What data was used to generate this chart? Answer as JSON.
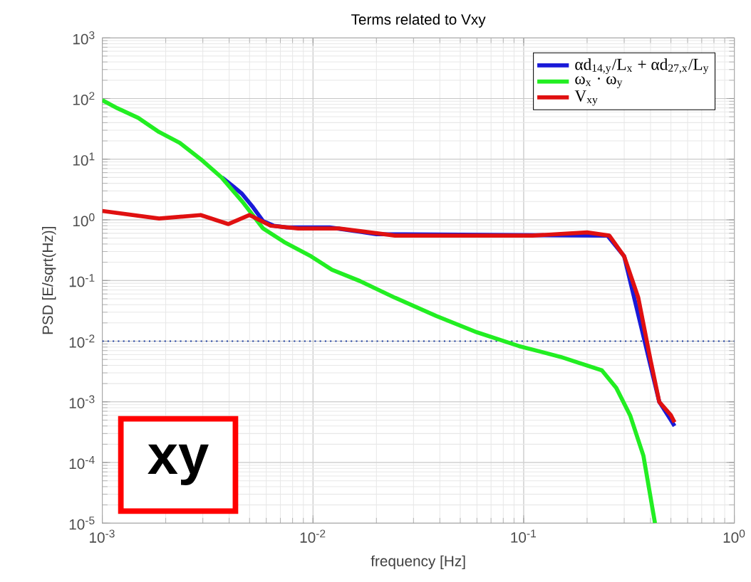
{
  "chart_data": {
    "type": "line",
    "title": "Terms related to Vxy",
    "xlabel": "frequency [Hz]",
    "ylabel": "PSD [E/sqrt(Hz)]",
    "log": "xy",
    "grid": true,
    "legend": "top right",
    "marker": "none",
    "line_style": "solid",
    "xlim": [
      0.001,
      1
    ],
    "ylim": [
      1e-05,
      1000
    ],
    "xticks": [
      {
        "value": 0.001,
        "label": "10$^{-3}$"
      },
      {
        "value": 0.01,
        "label": "10$^{-2}$"
      },
      {
        "value": 0.1,
        "label": "10$^{-1}$"
      },
      {
        "value": 1,
        "label": "10$^{0}$"
      }
    ],
    "yticks": [
      {
        "value": 1e-05,
        "label": "10$^{-5}$"
      },
      {
        "value": 0.0001,
        "label": "10$^{-4}$"
      },
      {
        "value": 0.001,
        "label": "10$^{-3}$"
      },
      {
        "value": 0.01,
        "label": "10$^{-2}$"
      },
      {
        "value": 0.1,
        "label": "10$^{-1}$"
      },
      {
        "value": 1,
        "label": "10$^{0}$"
      },
      {
        "value": 10,
        "label": "10$^{1}$"
      },
      {
        "value": 100,
        "label": "10$^{2}$"
      },
      {
        "value": 1000,
        "label": "10$^{3}$"
      }
    ],
    "series": [
      {
        "name": "αd$_{14,y}$/L$_{x}$ + αd$_{27,x}$/L$_{y}$",
        "color": "#1a1ad8",
        "x": [
          0.0037,
          0.0042,
          0.0046,
          0.0052,
          0.0058,
          0.0065,
          0.0075,
          0.009,
          0.012,
          0.02,
          0.05,
          0.1,
          0.2,
          0.25,
          0.3,
          0.35,
          0.4,
          0.44,
          0.5,
          0.52
        ],
        "values": [
          5,
          3.5,
          2.7,
          1.6,
          0.95,
          0.8,
          0.75,
          0.75,
          0.75,
          0.58,
          null,
          null,
          null,
          0.55,
          0.25,
          null,
          null,
          0.001,
          0.0005,
          0.0004
        ]
      },
      {
        "name": "ω$_{x}$ · ω$_{y}$",
        "color": "#22ee22",
        "x": [
          0.001,
          0.00118,
          0.00148,
          0.00186,
          0.00233,
          0.00293,
          0.00368,
          0.00462,
          0.0058,
          0.0073,
          0.0098,
          0.0123,
          0.0167,
          0.0245,
          0.0385,
          0.06,
          0.095,
          0.15,
          0.235,
          0.275,
          0.32,
          0.37,
          0.42
        ],
        "values": [
          94,
          69,
          48,
          28,
          18.6,
          10,
          5,
          2,
          0.72,
          0.43,
          0.25,
          0.15,
          0.098,
          0.052,
          0.026,
          0.014,
          0.0083,
          0.0055,
          0.0033,
          0.0017,
          0.0006,
          0.00013,
          1e-05
        ]
      },
      {
        "name": "V$_{xy}$",
        "color": "#e01010",
        "x": [
          0.001,
          0.00186,
          0.00293,
          0.00397,
          0.005,
          0.0063,
          0.0085,
          0.0133,
          0.0245,
          0.052,
          0.11,
          0.2,
          0.255,
          0.3,
          0.35,
          0.4,
          0.44,
          0.5,
          0.52
        ],
        "values": [
          1.4,
          1.05,
          1.2,
          0.85,
          1.2,
          0.8,
          0.72,
          0.72,
          0.55,
          0.55,
          0.55,
          0.62,
          0.55,
          0.25,
          0.052,
          0.0049,
          0.001,
          0.0006,
          0.00046
        ]
      }
    ],
    "ref_lines": [
      {
        "axis": "y",
        "value": 0.01,
        "color": "#1f3f9f",
        "line_style": "dotted"
      }
    ],
    "annotations": [
      "xy"
    ]
  }
}
